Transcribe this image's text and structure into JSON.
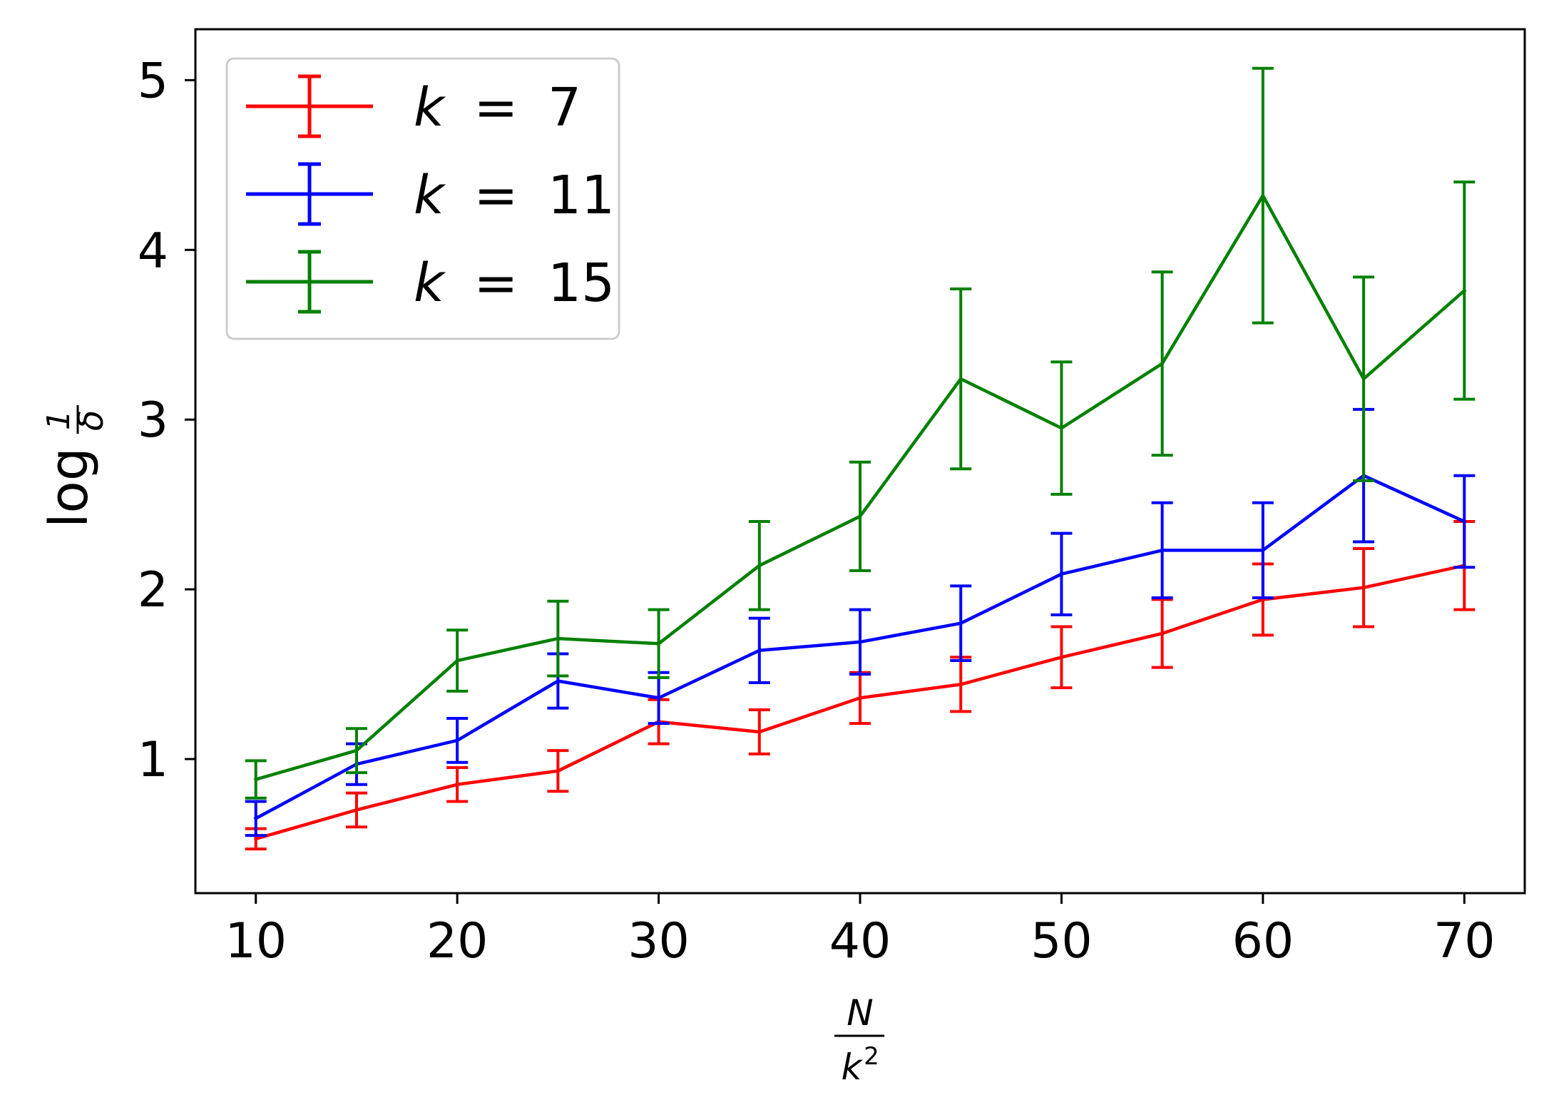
{
  "chart_data": {
    "type": "line",
    "title": "",
    "x": [
      10,
      15,
      20,
      25,
      30,
      35,
      40,
      45,
      50,
      55,
      60,
      65,
      70
    ],
    "xlim": [
      7,
      73
    ],
    "ylim": [
      0.21,
      5.3
    ],
    "xticks": [
      10,
      20,
      30,
      40,
      50,
      60,
      70
    ],
    "yticks": [
      1,
      2,
      3,
      4,
      5
    ],
    "xlabel": {
      "numerator": "N",
      "denominator_base": "k",
      "denominator_exp": "2"
    },
    "ylabel": {
      "prefix": "log",
      "numerator": "1",
      "denominator": "δ"
    },
    "legend_position": "top-left",
    "series": [
      {
        "name": "k = 7",
        "var": "k",
        "eq": "=",
        "val": "7",
        "color": "#ff0000",
        "values": [
          0.53,
          0.7,
          0.85,
          0.93,
          1.22,
          1.16,
          1.36,
          1.44,
          1.6,
          1.74,
          1.94,
          2.01,
          2.14
        ],
        "errors": [
          0.06,
          0.1,
          0.1,
          0.12,
          0.13,
          0.13,
          0.15,
          0.16,
          0.18,
          0.2,
          0.21,
          0.23,
          0.26
        ]
      },
      {
        "name": "k = 11",
        "var": "k",
        "eq": "=",
        "val": "11",
        "color": "#0000ff",
        "values": [
          0.65,
          0.97,
          1.11,
          1.46,
          1.36,
          1.64,
          1.69,
          1.8,
          2.09,
          2.23,
          2.23,
          2.67,
          2.4
        ],
        "errors": [
          0.1,
          0.12,
          0.13,
          0.16,
          0.15,
          0.19,
          0.19,
          0.22,
          0.24,
          0.28,
          0.28,
          0.39,
          0.27
        ]
      },
      {
        "name": "k = 15",
        "var": "k",
        "eq": "=",
        "val": "15",
        "color": "#008000",
        "values": [
          0.88,
          1.05,
          1.58,
          1.71,
          1.68,
          2.14,
          2.43,
          3.24,
          2.95,
          3.33,
          4.32,
          3.24,
          3.76
        ],
        "errors": [
          0.11,
          0.13,
          0.18,
          0.22,
          0.2,
          0.26,
          0.32,
          0.53,
          0.39,
          0.54,
          0.75,
          0.6,
          0.64
        ]
      }
    ]
  }
}
